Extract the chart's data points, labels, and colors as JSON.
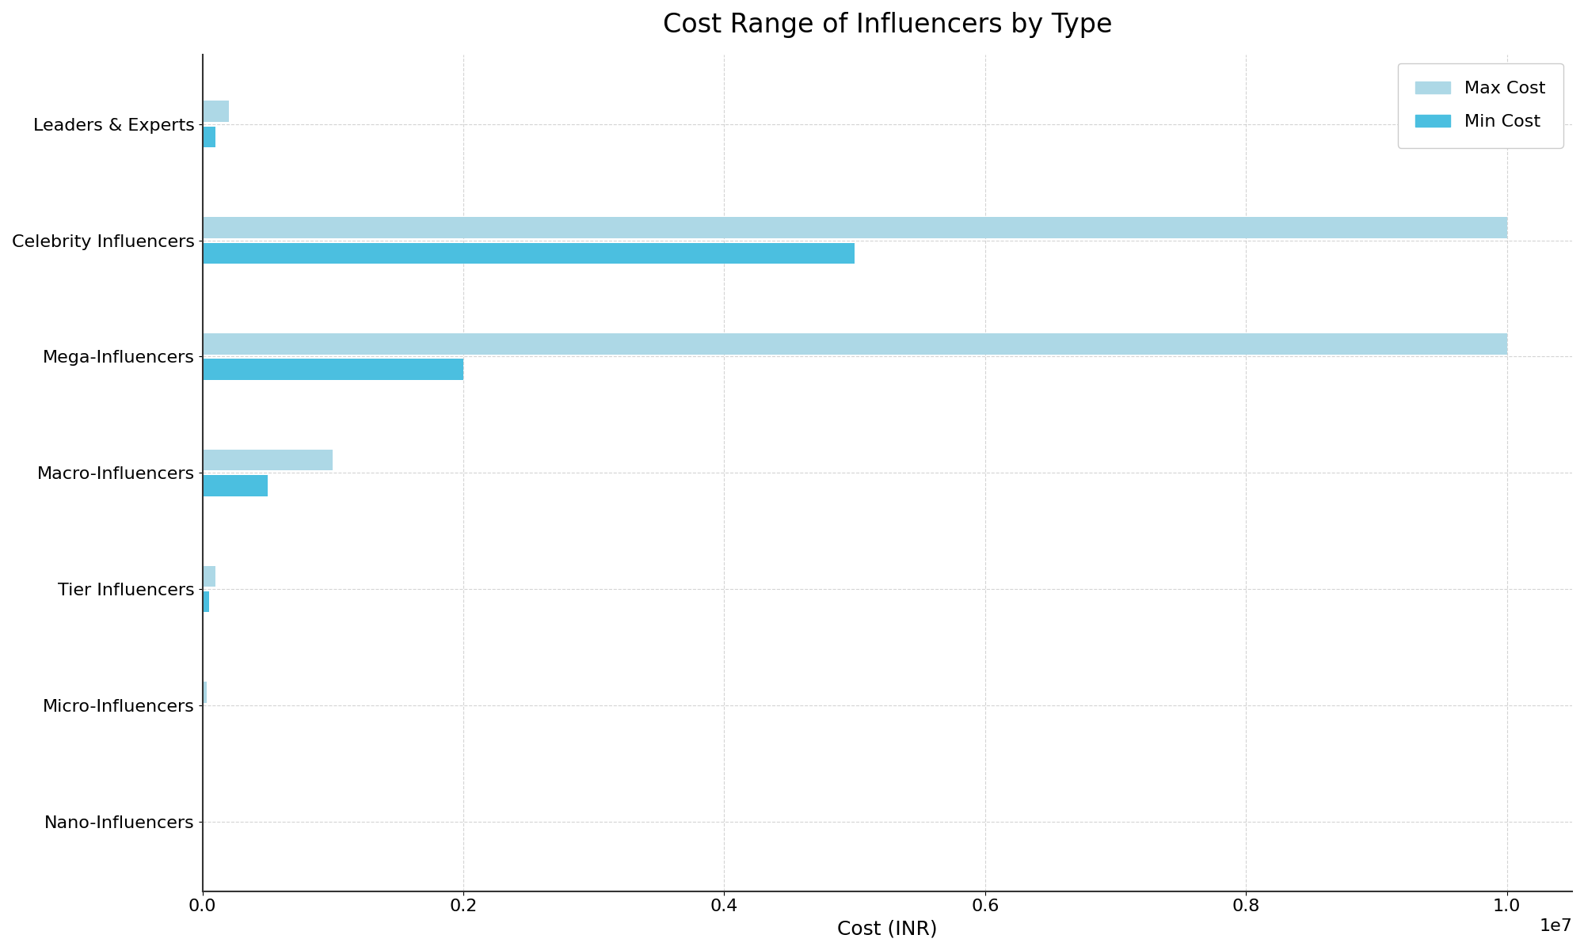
{
  "title": "Cost Range of Influencers by Type",
  "xlabel": "Cost (INR)",
  "categories": [
    "Nano-Influencers",
    "Micro-Influencers",
    "Tier Influencers",
    "Macro-Influencers",
    "Mega-Influencers",
    "Celebrity Influencers",
    "Leaders & Experts"
  ],
  "min_cost": [
    2000,
    10000,
    50000,
    500000,
    2000000,
    5000000,
    100000
  ],
  "max_cost": [
    5000,
    30000,
    100000,
    1000000,
    10000000,
    10000000,
    200000
  ],
  "max_cost_color": "#ADD8E6",
  "min_cost_color": "#4BBFE0",
  "title_fontsize": 24,
  "label_fontsize": 18,
  "tick_fontsize": 16,
  "legend_fontsize": 16,
  "bar_height": 0.18,
  "bar_gap": 0.04,
  "figsize": [
    20.0,
    12.0
  ],
  "dpi": 100,
  "background_color": "#FFFFFF",
  "grid_color": "#AAAAAA",
  "spine_color": "#333333"
}
